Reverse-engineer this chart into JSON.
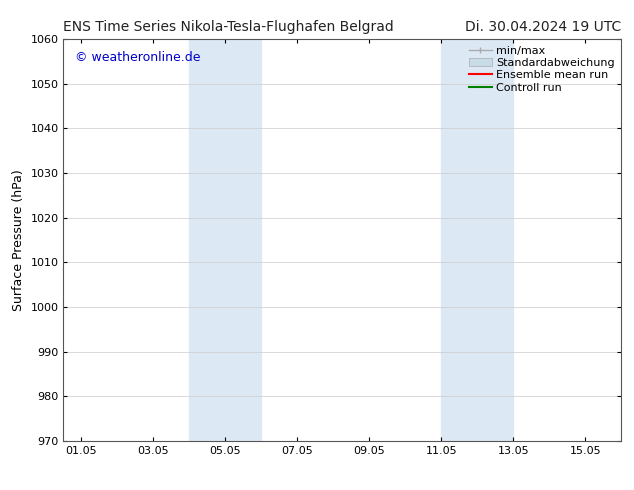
{
  "title_left": "ENS Time Series Nikola-Tesla-Flughafen Belgrad",
  "title_right": "Di. 30.04.2024 19 UTC",
  "ylabel": "Surface Pressure (hPa)",
  "watermark": "© weatheronline.de",
  "watermark_color": "#0000cc",
  "ylim": [
    970,
    1060
  ],
  "yticks": [
    970,
    980,
    990,
    1000,
    1010,
    1020,
    1030,
    1040,
    1050,
    1060
  ],
  "xlim_start": 0,
  "xlim_end": 15.5,
  "xtick_labels": [
    "01.05",
    "03.05",
    "05.05",
    "07.05",
    "09.05",
    "11.05",
    "13.05",
    "15.05"
  ],
  "xtick_positions": [
    0.5,
    2.5,
    4.5,
    6.5,
    8.5,
    10.5,
    12.5,
    14.5
  ],
  "shaded_regions": [
    {
      "xmin": 3.5,
      "xmax": 5.5,
      "color": "#dce9f5"
    },
    {
      "xmin": 10.5,
      "xmax": 12.5,
      "color": "#dce9f5"
    }
  ],
  "legend_items": [
    {
      "label": "min/max",
      "color": "#aaaaaa",
      "type": "minmax"
    },
    {
      "label": "Standardabweichung",
      "color": "#c8dce8",
      "type": "bar"
    },
    {
      "label": "Ensemble mean run",
      "color": "#ff0000",
      "type": "line"
    },
    {
      "label": "Controll run",
      "color": "#008000",
      "type": "line"
    }
  ],
  "bg_color": "#ffffff",
  "grid_color": "#cccccc",
  "title_fontsize": 10,
  "axis_label_fontsize": 9,
  "tick_fontsize": 8,
  "legend_fontsize": 8,
  "watermark_fontsize": 9
}
